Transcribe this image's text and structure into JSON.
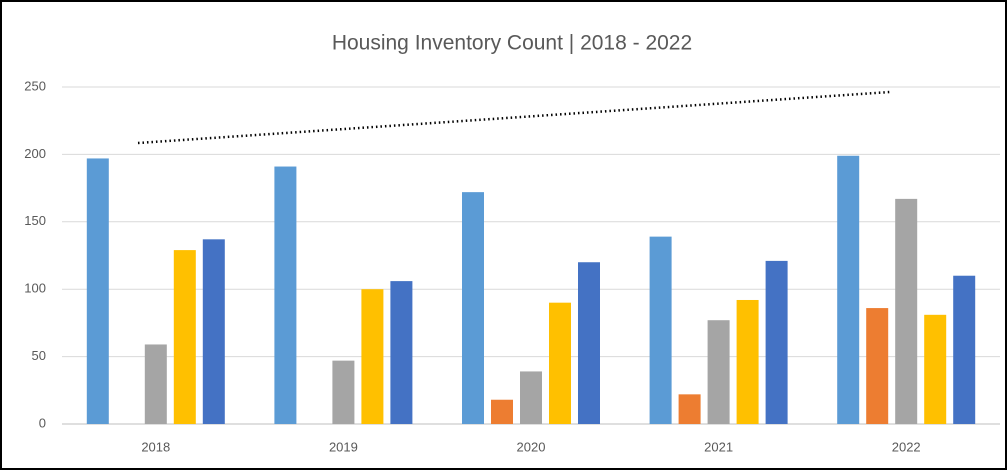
{
  "chart_data": {
    "type": "bar",
    "title": "Housing Inventory Count | 2018 - 2022",
    "categories": [
      "2018",
      "2019",
      "2020",
      "2021",
      "2022"
    ],
    "series": [
      {
        "color": "#5b9bd5",
        "values": [
          197,
          191,
          172,
          139,
          199
        ]
      },
      {
        "color": "#ed7d31",
        "values": [
          0,
          0,
          18,
          22,
          86
        ]
      },
      {
        "color": "#a5a5a5",
        "values": [
          59,
          47,
          39,
          77,
          167
        ]
      },
      {
        "color": "#ffc000",
        "values": [
          129,
          100,
          90,
          92,
          81
        ]
      },
      {
        "color": "#4472c4",
        "values": [
          137,
          106,
          120,
          121,
          110
        ]
      }
    ],
    "ylim": [
      0,
      250
    ],
    "yticks": [
      0,
      50,
      100,
      150,
      200,
      250
    ],
    "grid": true
  }
}
